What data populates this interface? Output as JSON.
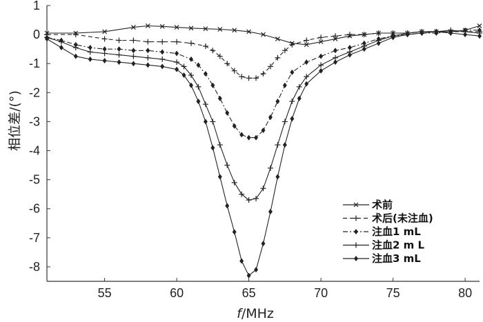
{
  "chart_data": {
    "type": "line",
    "xlabel_italic": "f",
    "xlabel_unit": "/MHz",
    "ylabel": "相位差/(°)",
    "xlim": [
      51,
      81
    ],
    "ylim": [
      -8.5,
      1
    ],
    "xticks": [
      55,
      60,
      65,
      70,
      75,
      80
    ],
    "yticks": [
      1,
      0,
      -1,
      -2,
      -3,
      -4,
      -5,
      -6,
      -7,
      -8
    ],
    "grid": false,
    "legend_position": "bottom-right",
    "series": [
      {
        "name": "术前",
        "line": "solid",
        "marker": "x",
        "x": [
          51,
          53,
          55,
          57,
          58,
          59,
          60,
          61,
          62,
          63,
          64,
          65,
          66,
          67,
          68,
          69,
          70,
          71,
          72,
          73,
          74,
          75,
          76,
          77,
          78,
          79,
          80,
          81
        ],
        "y": [
          0.05,
          0.05,
          0.1,
          0.25,
          0.3,
          0.28,
          0.25,
          0.22,
          0.2,
          0.18,
          0.15,
          0.1,
          0.0,
          -0.15,
          -0.3,
          -0.35,
          -0.25,
          -0.15,
          -0.05,
          0.0,
          0.05,
          0.05,
          0.05,
          0.1,
          0.1,
          0.1,
          0.15,
          0.3
        ]
      },
      {
        "name": "术后(未注血)",
        "line": "dashed",
        "marker": "+",
        "x": [
          51,
          53,
          55,
          56,
          57,
          58,
          59,
          60,
          61,
          62,
          62.5,
          63,
          63.5,
          64,
          64.5,
          65,
          65.5,
          66,
          66.5,
          67,
          67.5,
          68,
          69,
          70,
          71,
          72,
          73,
          74,
          75,
          76,
          77,
          78,
          79,
          80,
          81
        ],
        "y": [
          0.0,
          0.0,
          -0.15,
          -0.2,
          -0.2,
          -0.25,
          -0.25,
          -0.25,
          -0.3,
          -0.4,
          -0.55,
          -0.75,
          -1.0,
          -1.25,
          -1.45,
          -1.5,
          -1.5,
          -1.35,
          -1.1,
          -0.8,
          -0.55,
          -0.35,
          -0.2,
          -0.1,
          -0.05,
          0.0,
          0.0,
          0.05,
          0.05,
          0.05,
          0.1,
          0.1,
          0.1,
          0.1,
          0.1
        ]
      },
      {
        "name": "注血1 mL",
        "line": "dash-dot",
        "marker": "diamond",
        "x": [
          51,
          52,
          53,
          54,
          55,
          56,
          57,
          58,
          59,
          60,
          61,
          61.5,
          62,
          62.5,
          63,
          63.5,
          64,
          64.5,
          65,
          65.5,
          66,
          66.5,
          67,
          67.5,
          68,
          69,
          70,
          71,
          72,
          73,
          74,
          75,
          76,
          77,
          78,
          79,
          80,
          81
        ],
        "y": [
          -0.1,
          -0.2,
          -0.35,
          -0.45,
          -0.5,
          -0.5,
          -0.55,
          -0.55,
          -0.6,
          -0.65,
          -0.85,
          -1.05,
          -1.35,
          -1.75,
          -2.2,
          -2.7,
          -3.15,
          -3.45,
          -3.55,
          -3.55,
          -3.3,
          -2.85,
          -2.3,
          -1.75,
          -1.3,
          -0.95,
          -0.75,
          -0.55,
          -0.45,
          -0.3,
          -0.15,
          -0.05,
          0.0,
          0.05,
          0.05,
          0.1,
          0.15,
          0.15
        ]
      },
      {
        "name": "注血2 m L",
        "line": "solid",
        "marker": "+",
        "x": [
          51,
          52,
          53,
          54,
          55,
          56,
          57,
          58,
          59,
          60,
          60.5,
          61,
          61.5,
          62,
          62.5,
          63,
          63.5,
          64,
          64.5,
          65,
          65.5,
          66,
          66.5,
          67,
          67.5,
          68,
          68.5,
          69,
          70,
          71,
          72,
          73,
          74,
          75,
          76,
          77,
          78,
          79,
          80,
          81
        ],
        "y": [
          -0.1,
          -0.25,
          -0.45,
          -0.6,
          -0.65,
          -0.7,
          -0.75,
          -0.8,
          -0.85,
          -0.95,
          -1.1,
          -1.4,
          -1.8,
          -2.4,
          -3.0,
          -3.8,
          -4.5,
          -5.1,
          -5.5,
          -5.7,
          -5.65,
          -5.3,
          -4.6,
          -3.8,
          -3.0,
          -2.3,
          -1.8,
          -1.45,
          -1.05,
          -0.8,
          -0.6,
          -0.4,
          -0.2,
          -0.05,
          0.05,
          0.1,
          0.1,
          0.15,
          0.1,
          0.05
        ]
      },
      {
        "name": "注血3 mL",
        "line": "solid",
        "marker": "diamond",
        "x": [
          51,
          52,
          53,
          54,
          55,
          56,
          57,
          58,
          59,
          60,
          60.5,
          61,
          61.5,
          62,
          62.5,
          63,
          63.5,
          64,
          64.5,
          65,
          65.5,
          66,
          66.5,
          67,
          67.5,
          68,
          68.5,
          69,
          70,
          71,
          72,
          73,
          74,
          75,
          76,
          77,
          78,
          79,
          80,
          81
        ],
        "y": [
          -0.15,
          -0.45,
          -0.75,
          -0.85,
          -0.9,
          -0.95,
          -1.0,
          -1.05,
          -1.1,
          -1.2,
          -1.4,
          -1.75,
          -2.3,
          -3.0,
          -3.9,
          -4.9,
          -5.9,
          -6.8,
          -7.8,
          -8.3,
          -8.1,
          -7.2,
          -6.1,
          -4.9,
          -3.8,
          -2.9,
          -2.2,
          -1.7,
          -1.25,
          -0.95,
          -0.7,
          -0.5,
          -0.3,
          -0.1,
          0.0,
          0.05,
          0.1,
          0.05,
          0.0,
          -0.05
        ]
      }
    ]
  }
}
